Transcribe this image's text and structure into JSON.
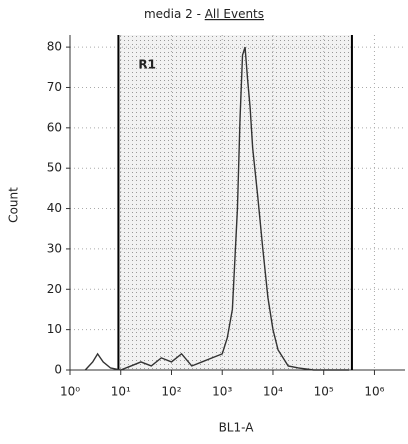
{
  "chart_data": {
    "type": "line",
    "title": "media 2 -",
    "title_link": "All Events",
    "x_label": "BL1-A",
    "y_label": "Count",
    "log_x": true,
    "grid": true,
    "xlim": [
      1,
      4000000
    ],
    "xticks": [
      {
        "value": 1,
        "label": "10⁰"
      },
      {
        "value": 10,
        "label": "10¹"
      },
      {
        "value": 100,
        "label": "10²"
      },
      {
        "value": 1000,
        "label": "10³"
      },
      {
        "value": 10000,
        "label": "10⁴"
      },
      {
        "value": 100000,
        "label": "10⁵"
      },
      {
        "value": 1000000,
        "label": "10⁶"
      }
    ],
    "ylim": [
      0,
      83
    ],
    "yticks": [
      0,
      10,
      20,
      30,
      40,
      50,
      60,
      70,
      80
    ],
    "region": {
      "name": "R1",
      "range": [
        9,
        360000
      ],
      "color": "#d9d9d9"
    },
    "series": [
      {
        "color": "#333333",
        "x": [
          2.0,
          2.8,
          3.5,
          4.5,
          6.3,
          10,
          16,
          25,
          40,
          63,
          100,
          158,
          251,
          398,
          631,
          1000,
          1259,
          1585,
          1995,
          2239,
          2512,
          2818,
          3162,
          3548,
          3981,
          5012,
          6310,
          7943,
          10000,
          12589,
          15849,
          19953,
          31623,
          63096,
          316228
        ],
        "values": [
          0,
          2,
          4,
          2,
          0.5,
          0,
          1,
          2,
          1,
          3,
          2,
          4,
          1,
          2,
          3,
          4,
          8,
          15,
          40,
          62,
          78,
          80,
          72,
          65,
          55,
          43,
          30,
          18,
          10,
          5,
          3,
          1,
          0.5,
          0,
          0
        ]
      }
    ]
  }
}
